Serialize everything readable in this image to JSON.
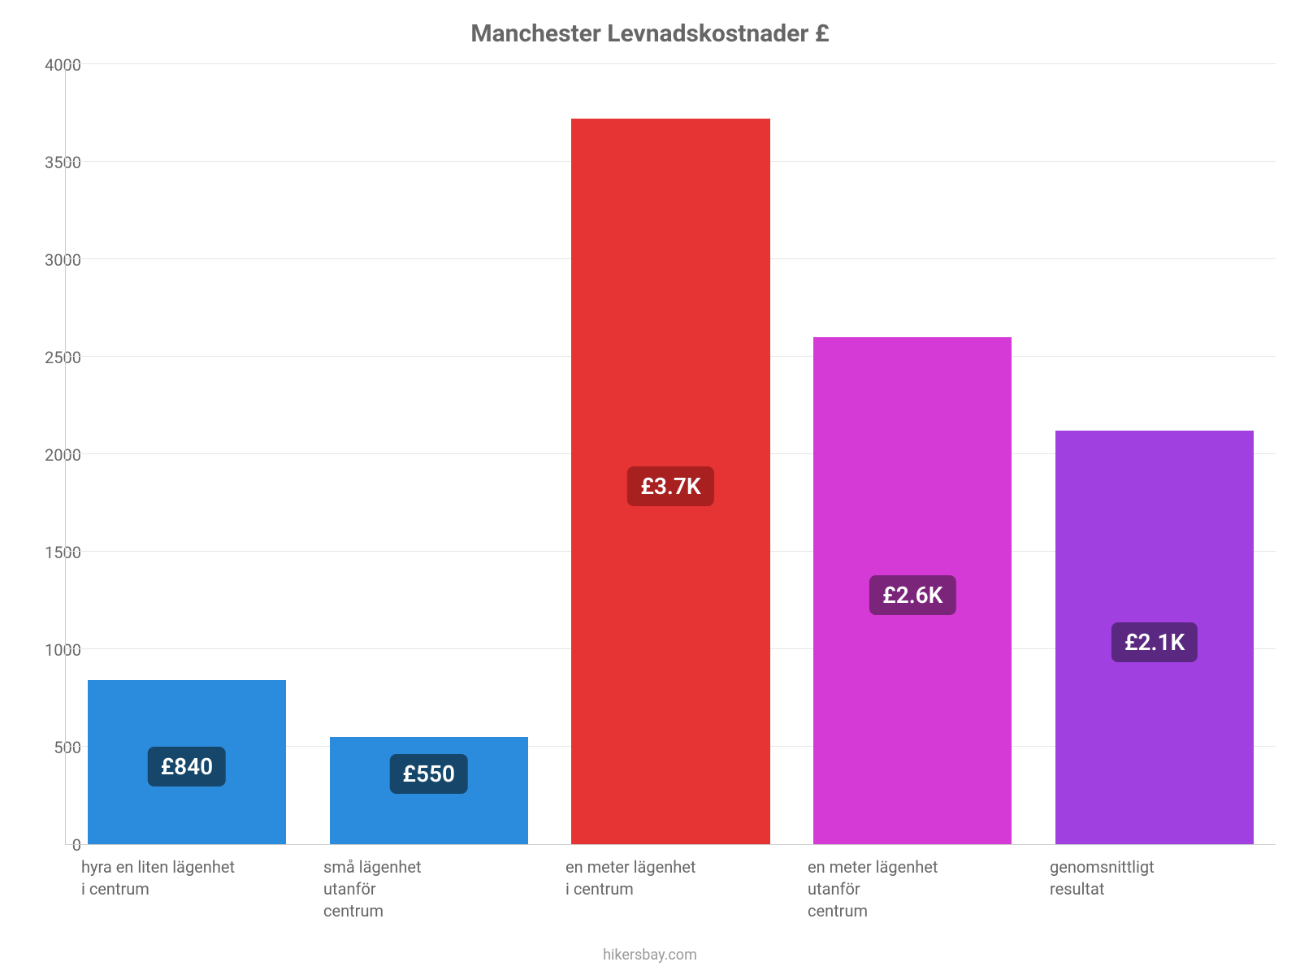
{
  "chart": {
    "type": "bar",
    "title": "Manchester Levnadskostnader £",
    "title_fontsize": 30,
    "title_color": "#666666",
    "background_color": "#ffffff",
    "grid_color": "#e6e6e6",
    "axis_color": "#cccccc",
    "tick_color": "#666666",
    "tick_fontsize": 20,
    "xlabel_fontsize": 20,
    "xlabel_color": "#666666",
    "ylim": [
      0,
      4000
    ],
    "ytick_step": 500,
    "yticks": [
      "0",
      "500",
      "1000",
      "1500",
      "2000",
      "2500",
      "3000",
      "3500",
      "4000"
    ],
    "bar_width_pct": 82,
    "categories": [
      "hyra en liten lägenhet\ni centrum",
      "små lägenhet\nutanför\ncentrum",
      "en meter lägenhet\ni centrum",
      "en meter lägenhet\nutanför\ncentrum",
      "genomsnittligt\nresultat"
    ],
    "values": [
      840,
      550,
      3720,
      2600,
      2120
    ],
    "value_labels": [
      "£840",
      "£550",
      "£3.7K",
      "£2.6K",
      "£2.1K"
    ],
    "bar_colors": [
      "#2b8cde",
      "#2b8cde",
      "#e63333",
      "#d63ad6",
      "#a040e0"
    ],
    "badge_colors": [
      "#16476b",
      "#16476b",
      "#a82020",
      "#7a257a",
      "#5a2880"
    ],
    "badge_fontsize": 28,
    "badge_radius": 8,
    "footer": "hikersbay.com",
    "footer_color": "#999999",
    "footer_fontsize": 18
  }
}
